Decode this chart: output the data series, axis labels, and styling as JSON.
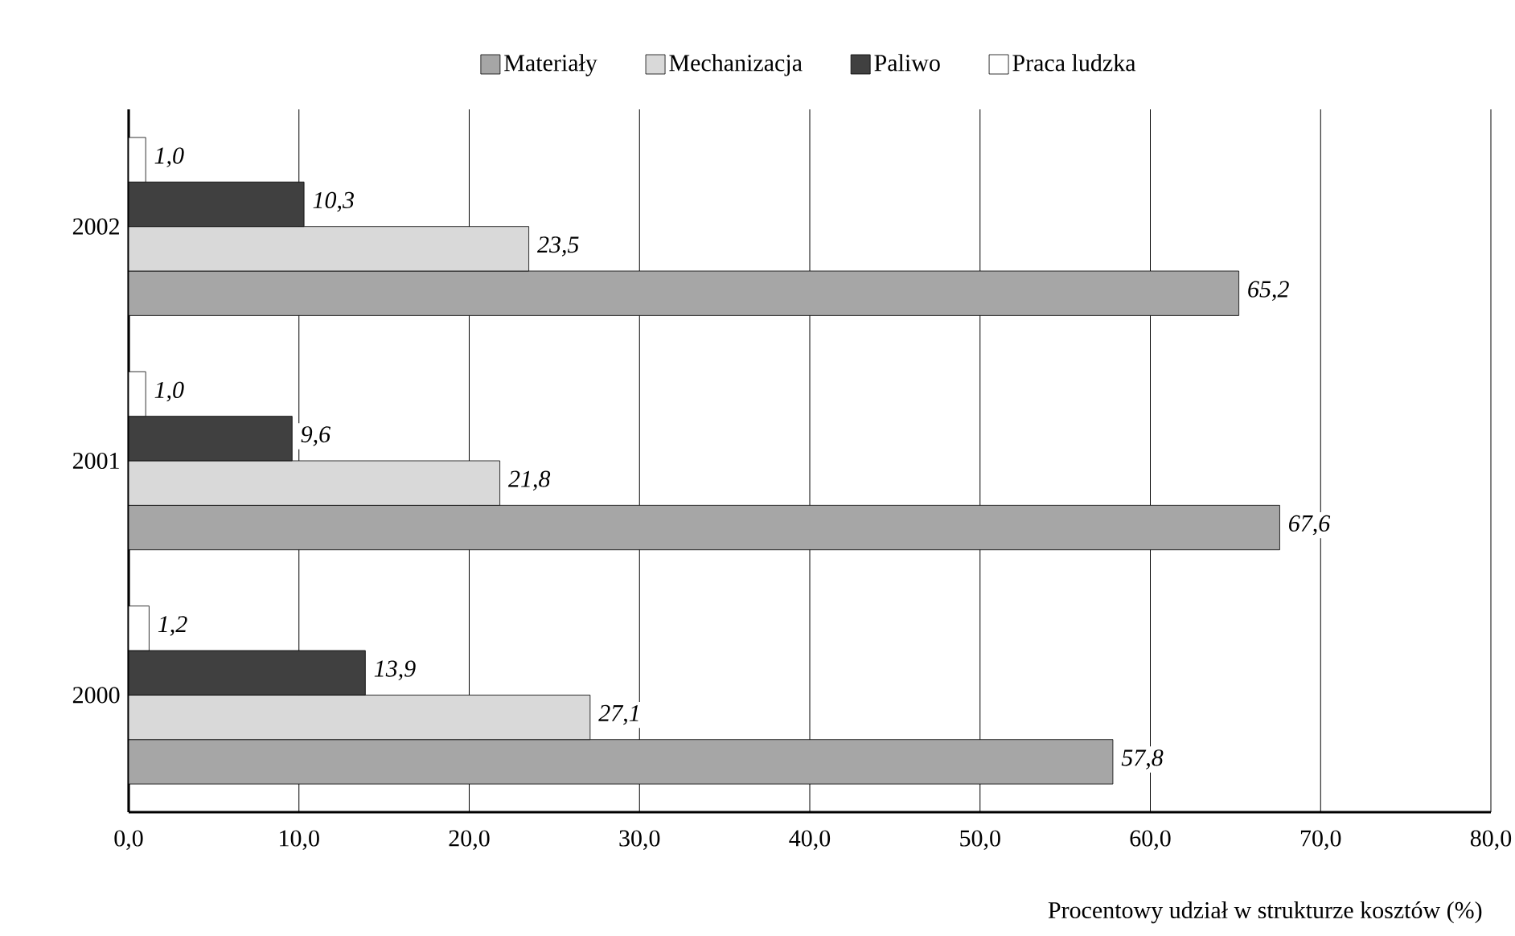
{
  "chart_data": {
    "type": "bar",
    "orientation": "horizontal",
    "xlabel": "Procentowy udział w strukturze kosztów (%)",
    "categories": [
      "2002",
      "2001",
      "2000"
    ],
    "series": [
      {
        "name": "Materiały",
        "color": "#a6a6a6",
        "values": [
          65.2,
          67.6,
          57.8
        ],
        "value_labels": [
          "65,2",
          "67,6",
          "57,8"
        ]
      },
      {
        "name": "Mechanizacja",
        "color": "#d9d9d9",
        "values": [
          23.5,
          21.8,
          27.1
        ],
        "value_labels": [
          "23,5",
          "21,8",
          "27,1"
        ]
      },
      {
        "name": "Paliwo",
        "color": "#404040",
        "values": [
          10.3,
          9.6,
          13.9
        ],
        "value_labels": [
          "10,3",
          "9,6",
          "13,9"
        ]
      },
      {
        "name": "Praca ludzka",
        "color": "#ffffff",
        "values": [
          1.0,
          1.0,
          1.2
        ],
        "value_labels": [
          "1,0",
          "1,0",
          "1,2"
        ]
      }
    ],
    "xlim": [
      0,
      80
    ],
    "xticks": [
      {
        "value": 0,
        "label": "0,0"
      },
      {
        "value": 10,
        "label": "10,0"
      },
      {
        "value": 20,
        "label": "20,0"
      },
      {
        "value": 30,
        "label": "30,0"
      },
      {
        "value": 40,
        "label": "40,0"
      },
      {
        "value": 50,
        "label": "50,0"
      },
      {
        "value": 60,
        "label": "60,0"
      },
      {
        "value": 70,
        "label": "70,0"
      },
      {
        "value": 80,
        "label": "80,0"
      }
    ],
    "grid": "x",
    "legend": "top"
  }
}
